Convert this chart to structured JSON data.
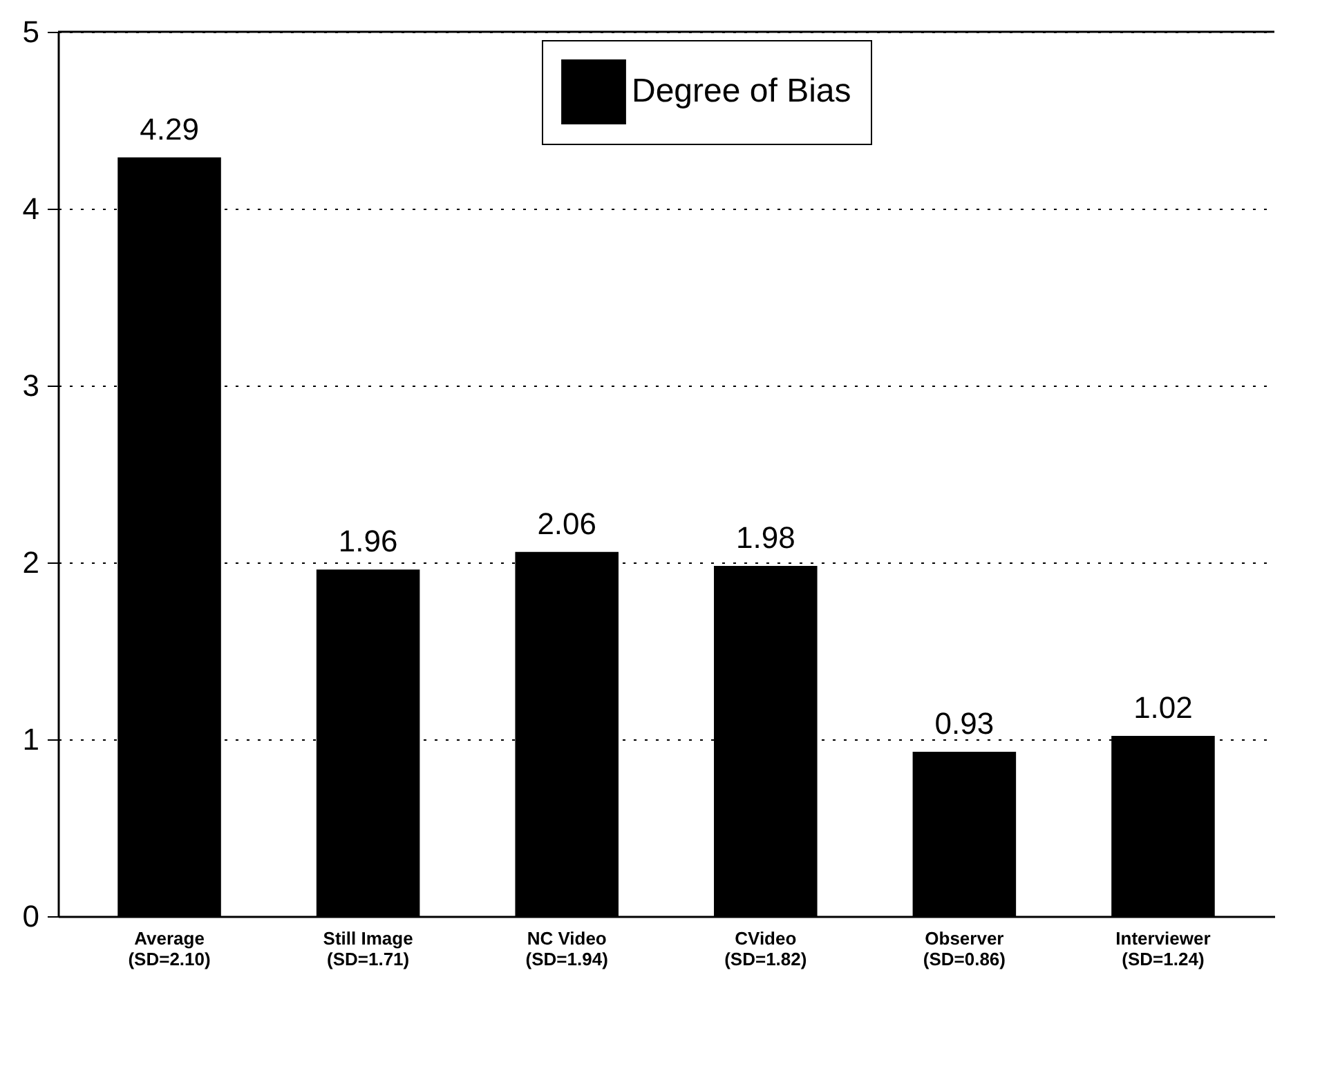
{
  "chart_data": {
    "type": "bar",
    "categories": [
      "Average\n(SD=2.10)",
      "Still Image\n(SD=1.71)",
      "NC Video\n(SD=1.94)",
      "CVideo\n(SD=1.82)",
      "Observer\n(SD=0.86)",
      "Interviewer\n(SD=1.24)"
    ],
    "series": [
      {
        "name": "Degree of Bias",
        "color": "#000000",
        "values": [
          4.29,
          1.96,
          2.06,
          1.98,
          0.93,
          1.02
        ]
      }
    ],
    "ylim": [
      0,
      5
    ],
    "yticks": [
      0,
      1,
      2,
      3,
      4,
      5
    ],
    "grid": "y",
    "legend": "top",
    "data_labels": true
  }
}
